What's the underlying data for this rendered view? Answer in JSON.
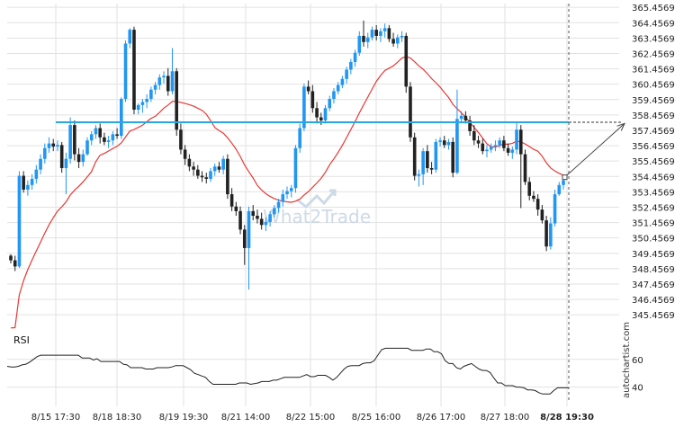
{
  "chart_data": {
    "type": "candlestick",
    "ylim": [
      345.0,
      365.7
    ],
    "y_ticks": [
      "365.4569",
      "364.4569",
      "363.4569",
      "362.4569",
      "361.4569",
      "360.4569",
      "359.4569",
      "358.4569",
      "357.4569",
      "356.4569",
      "355.4569",
      "354.4569",
      "353.4569",
      "352.4569",
      "351.4569",
      "350.4569",
      "349.4569",
      "348.4569",
      "347.4569",
      "346.4569",
      "345.4569"
    ],
    "x_ticks": [
      "8/15 17:30",
      "8/18 18:30",
      "8/19 19:30",
      "8/21 14:00",
      "8/22 15:00",
      "8/25 16:00",
      "8/26 17:00",
      "8/27 18:00",
      "8/28 19:30"
    ],
    "resistance_level": 357.98,
    "projection_target": 357.9,
    "colors": {
      "up": "#2196f3",
      "down": "#222222",
      "moving_average": "#e53935",
      "level": "#29a8e0",
      "rsi": "#222222",
      "grid": "#e2e2e2",
      "arrow": "#444444",
      "watermark": "#c8d6e5"
    },
    "ohlc": [
      [
        349.3,
        349.4,
        348.8,
        349.0
      ],
      [
        349.0,
        349.3,
        348.3,
        348.6
      ],
      [
        348.6,
        354.8,
        348.5,
        354.5
      ],
      [
        354.5,
        354.8,
        353.4,
        353.6
      ],
      [
        353.6,
        354.2,
        353.2,
        353.9
      ],
      [
        353.9,
        354.6,
        353.6,
        354.3
      ],
      [
        354.3,
        355.2,
        354.0,
        354.9
      ],
      [
        354.9,
        355.9,
        354.6,
        355.6
      ],
      [
        355.6,
        356.6,
        355.3,
        356.3
      ],
      [
        356.3,
        357.0,
        356.0,
        356.6
      ],
      [
        356.6,
        356.9,
        356.1,
        356.4
      ],
      [
        356.4,
        356.8,
        356.1,
        356.5
      ],
      [
        356.5,
        356.7,
        354.7,
        355.0
      ],
      [
        355.0,
        356.0,
        353.3,
        355.6
      ],
      [
        355.6,
        358.3,
        355.3,
        357.8
      ],
      [
        357.8,
        358.1,
        355.5,
        355.9
      ],
      [
        355.9,
        356.3,
        355.0,
        355.4
      ],
      [
        355.4,
        356.2,
        355.1,
        355.9
      ],
      [
        355.9,
        357.0,
        355.8,
        356.8
      ],
      [
        356.8,
        357.4,
        356.5,
        357.2
      ],
      [
        357.2,
        357.8,
        356.9,
        357.6
      ],
      [
        357.6,
        357.9,
        356.6,
        357.0
      ],
      [
        357.0,
        357.3,
        356.5,
        356.7
      ],
      [
        356.7,
        357.1,
        356.3,
        356.8
      ],
      [
        356.8,
        357.4,
        356.5,
        357.2
      ],
      [
        357.2,
        357.6,
        356.9,
        357.1
      ],
      [
        357.1,
        359.6,
        356.9,
        359.5
      ],
      [
        359.5,
        363.3,
        359.3,
        363.1
      ],
      [
        363.1,
        364.1,
        362.8,
        364.0
      ],
      [
        364.0,
        364.2,
        358.5,
        358.8
      ],
      [
        358.8,
        359.2,
        358.5,
        359.1
      ],
      [
        359.1,
        359.5,
        358.6,
        359.3
      ],
      [
        359.3,
        359.8,
        358.9,
        359.5
      ],
      [
        359.5,
        360.3,
        359.3,
        360.1
      ],
      [
        360.1,
        360.6,
        359.8,
        360.4
      ],
      [
        360.4,
        361.1,
        360.1,
        360.9
      ],
      [
        360.9,
        361.3,
        360.5,
        361.0
      ],
      [
        361.0,
        361.5,
        359.7,
        360.0
      ],
      [
        360.0,
        362.8,
        359.8,
        361.3
      ],
      [
        361.3,
        361.5,
        357.1,
        357.5
      ],
      [
        357.5,
        357.9,
        355.9,
        356.2
      ],
      [
        356.2,
        356.5,
        355.2,
        355.6
      ],
      [
        355.6,
        355.9,
        354.8,
        355.1
      ],
      [
        355.1,
        355.4,
        354.5,
        354.9
      ],
      [
        354.9,
        355.2,
        354.3,
        354.5
      ],
      [
        354.5,
        354.8,
        354.1,
        354.4
      ],
      [
        354.4,
        354.7,
        354.0,
        354.3
      ],
      [
        354.3,
        355.0,
        354.1,
        354.8
      ],
      [
        354.8,
        355.3,
        354.5,
        355.1
      ],
      [
        355.1,
        355.4,
        354.7,
        354.9
      ],
      [
        354.9,
        355.8,
        354.6,
        355.6
      ],
      [
        355.6,
        355.9,
        353.0,
        353.3
      ],
      [
        353.3,
        353.7,
        352.2,
        352.5
      ],
      [
        352.5,
        352.8,
        351.9,
        352.2
      ],
      [
        352.2,
        352.5,
        350.7,
        351.0
      ],
      [
        351.0,
        351.3,
        348.7,
        349.8
      ],
      [
        349.8,
        352.5,
        347.1,
        352.2
      ],
      [
        352.2,
        352.6,
        351.6,
        351.9
      ],
      [
        351.9,
        352.3,
        351.4,
        351.7
      ],
      [
        351.7,
        352.1,
        351.0,
        351.3
      ],
      [
        351.3,
        351.8,
        350.9,
        351.5
      ],
      [
        351.5,
        352.2,
        351.2,
        352.0
      ],
      [
        352.0,
        352.6,
        351.8,
        352.4
      ],
      [
        352.4,
        353.0,
        352.1,
        352.8
      ],
      [
        352.8,
        353.6,
        352.5,
        353.3
      ],
      [
        353.3,
        353.8,
        353.0,
        353.5
      ],
      [
        353.5,
        353.9,
        353.1,
        353.7
      ],
      [
        353.7,
        356.5,
        353.4,
        356.3
      ],
      [
        356.3,
        357.9,
        356.0,
        357.6
      ],
      [
        357.6,
        360.5,
        357.4,
        360.3
      ],
      [
        360.3,
        360.7,
        359.8,
        360.0
      ],
      [
        360.0,
        360.4,
        358.6,
        358.9
      ],
      [
        358.9,
        359.3,
        357.9,
        358.3
      ],
      [
        358.3,
        358.6,
        357.8,
        358.1
      ],
      [
        358.1,
        359.1,
        357.9,
        358.9
      ],
      [
        358.9,
        359.7,
        358.7,
        359.5
      ],
      [
        359.5,
        360.2,
        359.2,
        360.0
      ],
      [
        360.0,
        360.6,
        359.8,
        360.4
      ],
      [
        360.4,
        361.0,
        360.2,
        360.8
      ],
      [
        360.8,
        361.6,
        360.5,
        361.4
      ],
      [
        361.4,
        362.1,
        361.1,
        361.9
      ],
      [
        361.9,
        362.7,
        361.6,
        362.5
      ],
      [
        362.5,
        363.9,
        362.3,
        363.6
      ],
      [
        363.6,
        364.6,
        362.9,
        363.2
      ],
      [
        363.2,
        363.8,
        362.8,
        363.5
      ],
      [
        363.5,
        364.2,
        363.3,
        364.0
      ],
      [
        364.0,
        364.3,
        363.3,
        363.6
      ],
      [
        363.6,
        364.1,
        363.2,
        363.9
      ],
      [
        363.9,
        364.4,
        363.5,
        364.1
      ],
      [
        364.1,
        364.3,
        363.2,
        363.4
      ],
      [
        363.4,
        363.8,
        362.9,
        363.1
      ],
      [
        363.1,
        363.7,
        362.8,
        363.5
      ],
      [
        363.5,
        363.9,
        363.2,
        363.6
      ],
      [
        363.6,
        363.8,
        359.9,
        360.3
      ],
      [
        360.3,
        360.6,
        356.7,
        357.0
      ],
      [
        357.0,
        357.3,
        354.2,
        354.5
      ],
      [
        354.5,
        354.9,
        353.8,
        354.6
      ],
      [
        354.6,
        356.3,
        353.9,
        356.1
      ],
      [
        356.1,
        356.5,
        354.7,
        355.0
      ],
      [
        355.0,
        355.4,
        354.6,
        354.9
      ],
      [
        354.9,
        356.9,
        354.7,
        356.7
      ],
      [
        356.7,
        357.0,
        356.4,
        356.8
      ],
      [
        356.8,
        357.1,
        356.3,
        356.5
      ],
      [
        356.5,
        356.9,
        356.2,
        356.7
      ],
      [
        356.7,
        357.0,
        354.4,
        354.7
      ],
      [
        354.7,
        360.1,
        354.6,
        358.2
      ],
      [
        358.2,
        358.7,
        357.9,
        358.4
      ],
      [
        358.4,
        358.7,
        357.9,
        358.1
      ],
      [
        358.1,
        358.4,
        357.1,
        357.4
      ],
      [
        357.4,
        357.8,
        356.5,
        356.8
      ],
      [
        356.8,
        357.1,
        356.3,
        356.6
      ],
      [
        356.6,
        356.9,
        355.9,
        356.1
      ],
      [
        356.1,
        356.5,
        355.7,
        356.2
      ],
      [
        356.2,
        356.6,
        356.0,
        356.4
      ],
      [
        356.4,
        356.8,
        356.1,
        356.5
      ],
      [
        356.5,
        357.0,
        356.3,
        356.8
      ],
      [
        356.8,
        357.1,
        356.1,
        356.3
      ],
      [
        356.3,
        356.6,
        355.8,
        356.0
      ],
      [
        356.0,
        356.4,
        355.6,
        356.2
      ],
      [
        356.2,
        358.0,
        355.9,
        357.5
      ],
      [
        357.5,
        357.8,
        352.4,
        355.9
      ],
      [
        355.9,
        356.2,
        353.9,
        354.1
      ],
      [
        354.1,
        354.4,
        352.9,
        353.2
      ],
      [
        353.2,
        353.5,
        352.8,
        353.0
      ],
      [
        353.0,
        353.3,
        351.9,
        352.3
      ],
      [
        352.3,
        352.6,
        351.4,
        351.6
      ],
      [
        351.6,
        351.9,
        349.6,
        349.9
      ],
      [
        349.9,
        351.8,
        349.7,
        351.4
      ],
      [
        351.4,
        353.6,
        351.2,
        353.3
      ],
      [
        353.3,
        354.1,
        353.2,
        353.9
      ],
      [
        353.9,
        354.4,
        353.6,
        354.2
      ]
    ],
    "moving_average_period": 20,
    "rsi": {
      "title": "RSI",
      "ticks": [
        "60",
        "40"
      ],
      "ylim": [
        30,
        78
      ],
      "values": [
        55,
        54.5,
        54.5,
        55,
        56,
        56.5,
        58,
        60,
        62,
        63,
        63,
        63,
        63,
        63,
        63,
        63,
        63,
        63,
        63,
        63,
        61,
        61,
        61,
        59.5,
        60.5,
        58.5,
        58.5,
        58.5,
        58.5,
        58.5,
        58.5,
        56.5,
        56,
        54,
        54,
        54,
        54,
        53,
        53,
        53,
        54,
        54,
        54,
        54,
        54.5,
        55.5,
        55.5,
        55.5,
        54,
        52.5,
        50,
        49,
        48,
        47,
        44,
        42,
        42,
        42,
        42,
        42,
        42,
        42,
        43,
        43,
        43,
        42,
        42.5,
        43,
        44,
        44,
        44,
        45,
        45,
        46,
        47,
        47,
        47,
        47,
        47,
        48,
        49,
        47.5,
        47.5,
        48.5,
        48.5,
        48.5,
        47,
        45,
        47,
        50,
        53,
        55,
        55.5,
        55.5,
        55.5,
        57,
        57.5,
        57.5,
        59,
        63,
        67,
        68,
        68,
        68,
        68,
        68,
        68,
        68,
        66.5,
        66.5,
        66.5,
        66.5,
        67.5,
        67.5,
        65.5,
        65.5,
        64,
        59,
        57,
        57,
        54,
        53,
        55,
        56,
        57,
        55,
        53,
        52,
        52,
        50.5,
        46.5,
        43,
        43,
        41,
        41,
        41,
        40,
        40,
        39.5,
        38,
        38,
        37.5,
        36,
        35,
        35,
        35,
        37.5,
        39.5,
        39.5,
        39.5,
        39.5
      ]
    }
  },
  "watermark": {
    "text": "What2Trade"
  },
  "source": {
    "text": "autochartist.com"
  }
}
